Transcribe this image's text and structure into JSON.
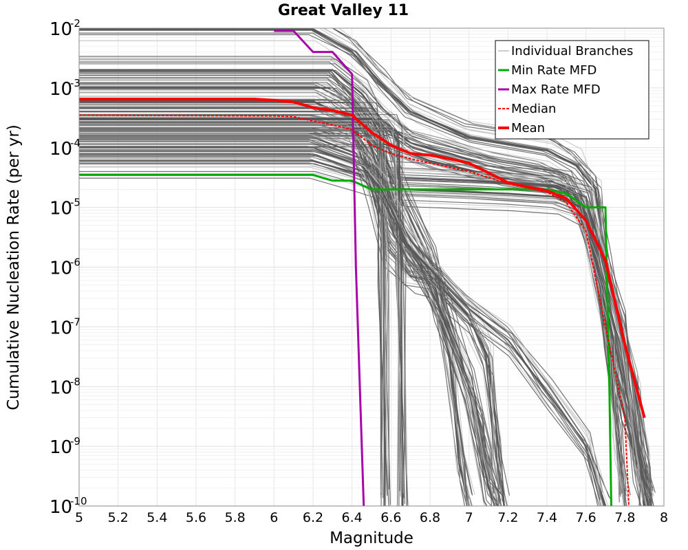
{
  "chart_data": {
    "type": "line",
    "title": "Great Valley 11",
    "xlabel": "Magnitude",
    "ylabel": "Cumulative Nucleation Rate (per yr)",
    "xlim": [
      5,
      8
    ],
    "ylim": [
      1e-10,
      0.01
    ],
    "yscale": "log",
    "grid": true,
    "legend_position": "top-right",
    "x_ticks": [
      5,
      5.2,
      5.4,
      5.6,
      5.8,
      6,
      6.2,
      6.4,
      6.6,
      6.8,
      7,
      7.2,
      7.4,
      7.6,
      7.8,
      8
    ],
    "x_tick_labels": [
      "5",
      "5.2",
      "5.4",
      "5.6",
      "5.8",
      "6",
      "6.2",
      "6.4",
      "6.6",
      "6.8",
      "7",
      "7.2",
      "7.4",
      "7.6",
      "7.8",
      "8"
    ],
    "y_ticks": [
      {
        "value": 0.01,
        "base": "10",
        "exp": "-2"
      },
      {
        "value": 0.001,
        "base": "10",
        "exp": "-3"
      },
      {
        "value": 0.0001,
        "base": "10",
        "exp": "-4"
      },
      {
        "value": 1e-05,
        "base": "10",
        "exp": "-5"
      },
      {
        "value": 1e-06,
        "base": "10",
        "exp": "-6"
      },
      {
        "value": 1e-07,
        "base": "10",
        "exp": "-7"
      },
      {
        "value": 1e-08,
        "base": "10",
        "exp": "-8"
      },
      {
        "value": 1e-09,
        "base": "10",
        "exp": "-9"
      },
      {
        "value": 1e-10,
        "base": "10",
        "exp": "-10"
      }
    ],
    "series": [
      {
        "name": "Min Rate MFD",
        "color": "#00aa00",
        "dash": "",
        "width": 3,
        "x": [
          5.0,
          6.2,
          6.3,
          6.4,
          6.5,
          7.0,
          7.4,
          7.5,
          7.6,
          7.7,
          7.72,
          7.73
        ],
        "y": [
          3.5e-05,
          3.5e-05,
          2.8e-05,
          2.8e-05,
          2e-05,
          2e-05,
          2e-05,
          1.7e-05,
          1e-05,
          1e-05,
          1e-08,
          1e-10
        ]
      },
      {
        "name": "Max Rate MFD",
        "color": "#aa00aa",
        "dash": "",
        "width": 3,
        "x": [
          6.0,
          6.1,
          6.2,
          6.3,
          6.4,
          6.42,
          6.46
        ],
        "y": [
          0.009,
          0.009,
          0.004,
          0.004,
          0.0017,
          1e-06,
          1e-10
        ]
      },
      {
        "name": "Median",
        "color": "#ff0000",
        "dash": "4,2",
        "width": 2,
        "x": [
          5.0,
          6.0,
          6.1,
          6.2,
          6.3,
          6.4,
          6.5,
          6.6,
          6.7,
          6.8,
          7.0,
          7.2,
          7.4,
          7.5,
          7.6,
          7.7,
          7.8,
          7.82
        ],
        "y": [
          0.00035,
          0.00034,
          0.00033,
          0.00028,
          0.00024,
          0.0002,
          0.00011,
          8e-05,
          6.5e-05,
          5.5e-05,
          4e-05,
          2.5e-05,
          1.8e-05,
          1.2e-05,
          4e-06,
          1e-07,
          3e-09,
          1e-10
        ]
      },
      {
        "name": "Mean",
        "color": "#ff0000",
        "dash": "",
        "width": 4,
        "x": [
          5.0,
          5.9,
          6.0,
          6.1,
          6.2,
          6.3,
          6.4,
          6.5,
          6.6,
          6.7,
          6.8,
          6.9,
          7.0,
          7.1,
          7.2,
          7.3,
          7.4,
          7.5,
          7.6,
          7.7,
          7.8,
          7.9
        ],
        "y": [
          0.00065,
          0.00065,
          0.00062,
          0.00058,
          0.00047,
          0.00042,
          0.00035,
          0.00018,
          0.00011,
          8e-05,
          7.5e-05,
          6.5e-05,
          5.5e-05,
          3.8e-05,
          2.6e-05,
          2.2e-05,
          1.9e-05,
          1.4e-05,
          6e-06,
          1.3e-06,
          5e-08,
          3e-09
        ]
      }
    ],
    "branch_bundles": [
      {
        "name": "Individual Branches",
        "x": [
          5.0,
          6.2,
          6.4,
          6.55,
          6.7,
          7.0,
          7.4,
          7.55,
          7.65,
          7.7,
          7.78,
          7.85,
          7.9,
          7.93
        ],
        "y": [
          0.0095,
          0.0095,
          0.004,
          0.0012,
          0.0004,
          0.00015,
          9e-05,
          5e-05,
          2e-05,
          1e-06,
          1e-07,
          1e-08,
          5e-10,
          1e-10
        ]
      },
      {
        "name": "Individual Branches",
        "x": [
          5.0,
          6.3,
          6.45,
          6.55,
          6.7,
          6.9,
          7.1,
          7.35,
          7.52,
          7.6,
          7.68,
          7.78,
          7.9,
          7.92
        ],
        "y": [
          0.002,
          0.002,
          0.0008,
          0.0003,
          0.00012,
          8e-05,
          5e-05,
          3.5e-05,
          2e-05,
          8e-06,
          4e-07,
          2e-08,
          3e-10,
          1e-10
        ]
      },
      {
        "name": "Individual Branches",
        "x": [
          5.0,
          6.2,
          6.4,
          6.55,
          6.8,
          7.2,
          7.5,
          7.62,
          7.72,
          7.8,
          7.88,
          7.92
        ],
        "y": [
          0.0006,
          0.0006,
          0.0003,
          0.00012,
          6e-05,
          3e-05,
          2e-05,
          3e-06,
          3e-08,
          3e-09,
          4e-10,
          1e-10
        ]
      },
      {
        "name": "Individual Branches",
        "x": [
          5.0,
          6.2,
          6.42,
          6.52,
          6.6,
          7.0,
          7.45,
          7.6,
          7.7,
          7.78,
          7.86,
          7.9
        ],
        "y": [
          0.00015,
          0.00015,
          8e-05,
          4e-05,
          3.2e-05,
          2.8e-05,
          2.3e-05,
          1.5e-05,
          1e-06,
          1e-07,
          5e-10,
          1e-10
        ]
      },
      {
        "name": "Individual Branches",
        "x": [
          5.0,
          6.2,
          6.45,
          6.55,
          6.65,
          7.2,
          7.45,
          7.58,
          7.66,
          7.72,
          7.76,
          7.8
        ],
        "y": [
          6e-05,
          6e-05,
          3.5e-05,
          2.5e-05,
          2e-05,
          1.7e-05,
          1.5e-05,
          1e-05,
          1e-06,
          5e-08,
          1e-09,
          1e-10
        ]
      },
      {
        "name": "Individual Branches",
        "x": [
          5.0,
          6.2,
          6.45,
          6.55,
          6.62,
          6.8,
          7.0,
          7.1,
          7.15,
          7.18
        ],
        "y": [
          0.0003,
          0.0003,
          0.0002,
          5e-05,
          5e-06,
          7e-07,
          1.5e-07,
          3e-08,
          1e-09,
          1e-10
        ]
      },
      {
        "name": "Individual Branches",
        "x": [
          5.0,
          6.3,
          6.45,
          6.55,
          6.65,
          6.8,
          6.9,
          7.0,
          7.05,
          7.1,
          7.15
        ],
        "y": [
          0.001,
          0.001,
          0.0003,
          0.0001,
          1.5e-05,
          1.2e-06,
          1e-07,
          1e-08,
          2e-09,
          5e-10,
          1e-10
        ]
      },
      {
        "name": "Individual Branches",
        "x": [
          5.0,
          6.4,
          6.5,
          6.58,
          6.7,
          6.82,
          6.9,
          6.95,
          7.0
        ],
        "y": [
          0.0002,
          0.0002,
          2e-05,
          2e-06,
          7e-07,
          6e-07,
          3e-08,
          5e-10,
          1e-10
        ]
      },
      {
        "name": "Individual Branches",
        "x": [
          5.0,
          6.4,
          6.5,
          6.6,
          6.75,
          6.85,
          7.0,
          7.1,
          7.15
        ],
        "y": [
          0.0004,
          0.0004,
          0.0001,
          6e-06,
          1e-06,
          2e-07,
          1e-08,
          2e-10,
          1e-10
        ]
      },
      {
        "name": "Individual Branches",
        "x": [
          5.0,
          6.5,
          6.55,
          6.56,
          6.57
        ],
        "y": [
          0.0003,
          0.0003,
          0.00015,
          1e-06,
          1e-10
        ]
      },
      {
        "name": "Individual Branches",
        "x": [
          5.0,
          6.6,
          6.64,
          6.65,
          6.66
        ],
        "y": [
          0.0002,
          0.0002,
          0.00012,
          1e-06,
          1e-10
        ]
      },
      {
        "name": "Individual Branches",
        "x": [
          5.0,
          6.2,
          6.45,
          6.55,
          6.7,
          7.0,
          7.2,
          7.4,
          7.6,
          7.7
        ],
        "y": [
          0.0001,
          0.0001,
          5e-05,
          2e-05,
          2e-06,
          2e-07,
          6e-08,
          8e-09,
          1e-09,
          1e-10
        ]
      }
    ]
  },
  "legend": {
    "items": [
      {
        "label": "Individual Branches",
        "color": "#999999",
        "dash": "",
        "width": 1
      },
      {
        "label": "Min Rate MFD",
        "color": "#00aa00",
        "dash": "",
        "width": 3
      },
      {
        "label": "Max Rate MFD",
        "color": "#aa00aa",
        "dash": "",
        "width": 3
      },
      {
        "label": "Median",
        "color": "#ff0000",
        "dash": "4,2",
        "width": 2
      },
      {
        "label": "Mean",
        "color": "#ff0000",
        "dash": "",
        "width": 4
      }
    ]
  }
}
